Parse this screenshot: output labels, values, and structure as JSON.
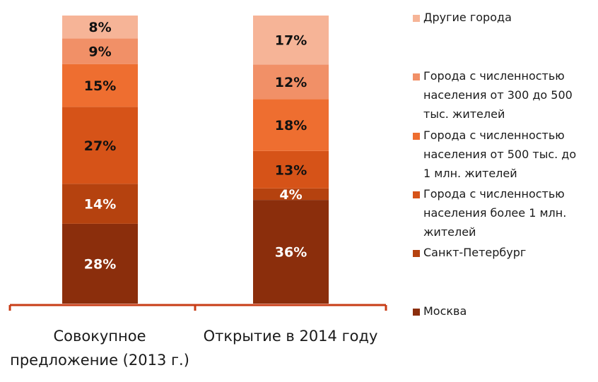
{
  "chart_data": {
    "type": "bar",
    "stacked": true,
    "percent": true,
    "categories": [
      [
        "Совокупное",
        "предложение (2013 г.)"
      ],
      [
        "Открытие в 2014 году"
      ]
    ],
    "series": [
      {
        "name": "Москва",
        "color": "#8b2e0c",
        "values": [
          28,
          36
        ]
      },
      {
        "name": "Санкт-Петербург",
        "color": "#b5420f",
        "values": [
          14,
          4
        ]
      },
      {
        "name": [
          "Города с численностью",
          "населения более 1 млн.",
          "жителей"
        ],
        "color": "#d65318",
        "values": [
          27,
          13
        ]
      },
      {
        "name": [
          "Города с численностью",
          "населения от 500 тыс. до",
          "1 млн. жителей"
        ],
        "color": "#ee6e30",
        "values": [
          15,
          18
        ]
      },
      {
        "name": [
          "Города с численностью",
          "населения от 300 до 500",
          "тыс. жителей"
        ],
        "color": "#f19067",
        "values": [
          9,
          12
        ]
      },
      {
        "name": "Другие города",
        "color": "#f6b497",
        "values": [
          8,
          17
        ]
      }
    ],
    "data_labels": [
      [
        "28%",
        "14%",
        "27%",
        "15%",
        "9%",
        "8%"
      ],
      [
        "36%",
        "4%",
        "13%",
        "18%",
        "12%",
        "17%"
      ]
    ],
    "axis_color": "#c83c16",
    "legend_position": "right"
  }
}
